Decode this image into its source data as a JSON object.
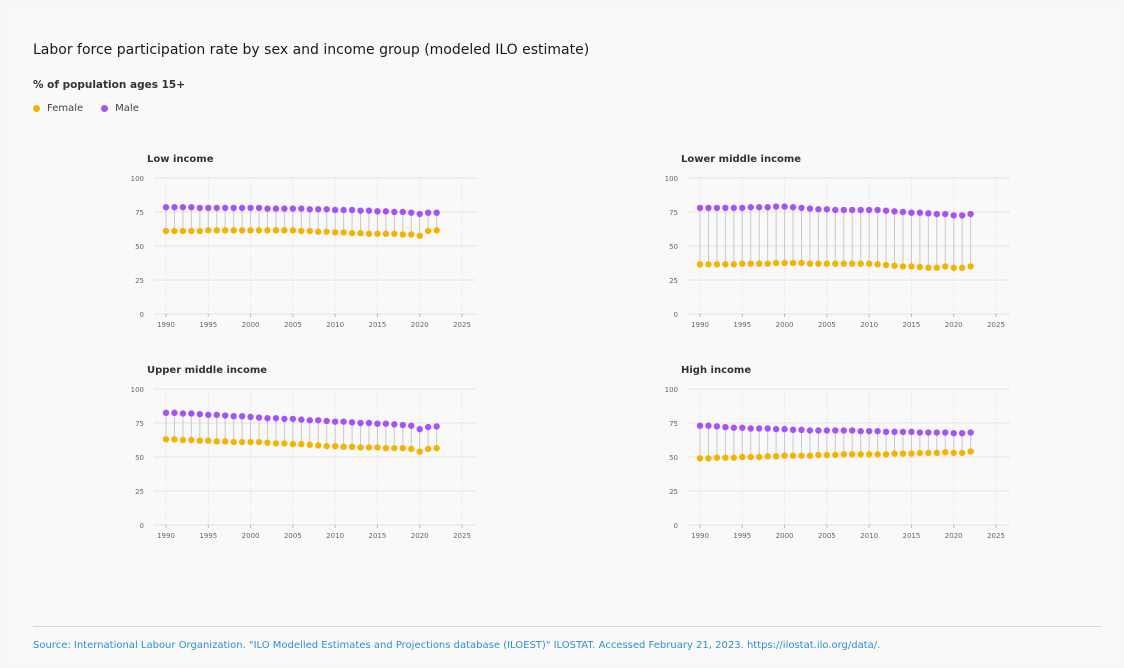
{
  "title": "Labor force participation rate by sex and income group (modeled ILO estimate)",
  "subtitle": "% of population ages 15+",
  "legend": [
    {
      "label": "Female",
      "color": "#f5b301"
    },
    {
      "label": "Male",
      "color": "#a653f5"
    }
  ],
  "source": "Source: International Labour Organization. \"ILO Modelled Estimates and Projections database (ILOEST)\" ILOSTAT. Accessed February 21, 2023. https://ilostat.ilo.org/data/.",
  "chart_data": [
    {
      "type": "dumbbell",
      "title": "Low income",
      "xlim": [
        1990,
        2025
      ],
      "ylim": [
        0,
        100
      ],
      "xticks": [
        1990,
        1995,
        2000,
        2005,
        2010,
        2015,
        2020,
        2025
      ],
      "yticks": [
        0,
        25,
        50,
        75,
        100
      ],
      "x": [
        1990,
        1991,
        1992,
        1993,
        1994,
        1995,
        1996,
        1997,
        1998,
        1999,
        2000,
        2001,
        2002,
        2003,
        2004,
        2005,
        2006,
        2007,
        2008,
        2009,
        2010,
        2011,
        2012,
        2013,
        2014,
        2015,
        2016,
        2017,
        2018,
        2019,
        2020,
        2021,
        2022
      ],
      "series": [
        {
          "name": "Female",
          "values": [
            61,
            61,
            61,
            61,
            61,
            61.5,
            61.5,
            61.5,
            61.5,
            61.5,
            61.5,
            61.5,
            61.5,
            61.5,
            61.5,
            61.5,
            61,
            61,
            60.5,
            60.5,
            60,
            60,
            59.5,
            59.5,
            59,
            59,
            59,
            59,
            58.5,
            58.5,
            57.5,
            61,
            61.5
          ]
        },
        {
          "name": "Male",
          "values": [
            78.5,
            78.5,
            78.5,
            78.5,
            78,
            78,
            78,
            78,
            78,
            78,
            78,
            78,
            77.5,
            77.5,
            77.5,
            77.5,
            77.5,
            77,
            77,
            77,
            76.5,
            76.5,
            76.5,
            76,
            76,
            75.5,
            75.5,
            75,
            75,
            74.5,
            73.5,
            74.5,
            74.5
          ]
        }
      ]
    },
    {
      "type": "dumbbell",
      "title": "Lower middle income",
      "xlim": [
        1990,
        2025
      ],
      "ylim": [
        0,
        100
      ],
      "xticks": [
        1990,
        1995,
        2000,
        2005,
        2010,
        2015,
        2020,
        2025
      ],
      "yticks": [
        0,
        25,
        50,
        75,
        100
      ],
      "x": [
        1990,
        1991,
        1992,
        1993,
        1994,
        1995,
        1996,
        1997,
        1998,
        1999,
        2000,
        2001,
        2002,
        2003,
        2004,
        2005,
        2006,
        2007,
        2008,
        2009,
        2010,
        2011,
        2012,
        2013,
        2014,
        2015,
        2016,
        2017,
        2018,
        2019,
        2020,
        2021,
        2022
      ],
      "series": [
        {
          "name": "Female",
          "values": [
            36.5,
            36.5,
            36.5,
            36.5,
            36.5,
            37,
            37,
            37,
            37,
            37.5,
            37.5,
            37.5,
            37.5,
            37,
            37,
            37,
            37,
            37,
            37,
            37,
            37,
            36.5,
            36,
            35.5,
            35,
            35,
            34.5,
            34,
            34,
            35,
            34,
            34,
            35
          ]
        },
        {
          "name": "Male",
          "values": [
            78,
            78,
            78,
            78,
            78,
            78,
            78.5,
            78.5,
            78.5,
            79,
            79,
            78.5,
            78,
            77.5,
            77,
            77,
            76.5,
            76.5,
            76.5,
            76.5,
            76.5,
            76.5,
            76,
            75.5,
            75,
            74.5,
            74.5,
            74,
            73.5,
            73.5,
            72.5,
            72.5,
            73.5
          ]
        }
      ]
    },
    {
      "type": "dumbbell",
      "title": "Upper middle income",
      "xlim": [
        1990,
        2025
      ],
      "ylim": [
        0,
        100
      ],
      "xticks": [
        1990,
        1995,
        2000,
        2005,
        2010,
        2015,
        2020,
        2025
      ],
      "yticks": [
        0,
        25,
        50,
        75,
        100
      ],
      "x": [
        1990,
        1991,
        1992,
        1993,
        1994,
        1995,
        1996,
        1997,
        1998,
        1999,
        2000,
        2001,
        2002,
        2003,
        2004,
        2005,
        2006,
        2007,
        2008,
        2009,
        2010,
        2011,
        2012,
        2013,
        2014,
        2015,
        2016,
        2017,
        2018,
        2019,
        2020,
        2021,
        2022
      ],
      "series": [
        {
          "name": "Female",
          "values": [
            63,
            63,
            62.5,
            62.5,
            62,
            62,
            61.5,
            61.5,
            61,
            61,
            61,
            61,
            60.5,
            60,
            60,
            59.5,
            59.5,
            59,
            58.5,
            58,
            58,
            57.5,
            57.5,
            57,
            57,
            57,
            56.5,
            56.5,
            56.5,
            56,
            54,
            56,
            56.5
          ]
        },
        {
          "name": "Male",
          "values": [
            82.5,
            82.5,
            82,
            82,
            81.5,
            81,
            81,
            80.5,
            80,
            80,
            79.5,
            79,
            78.5,
            78.5,
            78,
            78,
            77.5,
            77,
            77,
            76.5,
            76,
            76,
            75.5,
            75,
            75,
            74.5,
            74.5,
            74,
            73.5,
            73,
            70.5,
            72,
            72.5
          ]
        }
      ]
    },
    {
      "type": "dumbbell",
      "title": "High income",
      "xlim": [
        1990,
        2025
      ],
      "ylim": [
        0,
        100
      ],
      "xticks": [
        1990,
        1995,
        2000,
        2005,
        2010,
        2015,
        2020,
        2025
      ],
      "yticks": [
        0,
        25,
        50,
        75,
        100
      ],
      "x": [
        1990,
        1991,
        1992,
        1993,
        1994,
        1995,
        1996,
        1997,
        1998,
        1999,
        2000,
        2001,
        2002,
        2003,
        2004,
        2005,
        2006,
        2007,
        2008,
        2009,
        2010,
        2011,
        2012,
        2013,
        2014,
        2015,
        2016,
        2017,
        2018,
        2019,
        2020,
        2021,
        2022
      ],
      "series": [
        {
          "name": "Female",
          "values": [
            49,
            49,
            49.5,
            49.5,
            49.5,
            50,
            50,
            50,
            50.5,
            50.5,
            51,
            51,
            51,
            51,
            51.5,
            51.5,
            51.5,
            52,
            52,
            52,
            52,
            52,
            52,
            52.5,
            52.5,
            52.5,
            53,
            53,
            53,
            53.5,
            53,
            53,
            54
          ]
        },
        {
          "name": "Male",
          "values": [
            73,
            73,
            72.5,
            72,
            71.5,
            71.5,
            71,
            71,
            71,
            70.5,
            70.5,
            70,
            70,
            69.5,
            69.5,
            69.5,
            69.5,
            69.5,
            69.5,
            69,
            69,
            69,
            68.5,
            68.5,
            68.5,
            68.5,
            68,
            68,
            68,
            68,
            67.5,
            67.5,
            68
          ]
        }
      ]
    }
  ]
}
